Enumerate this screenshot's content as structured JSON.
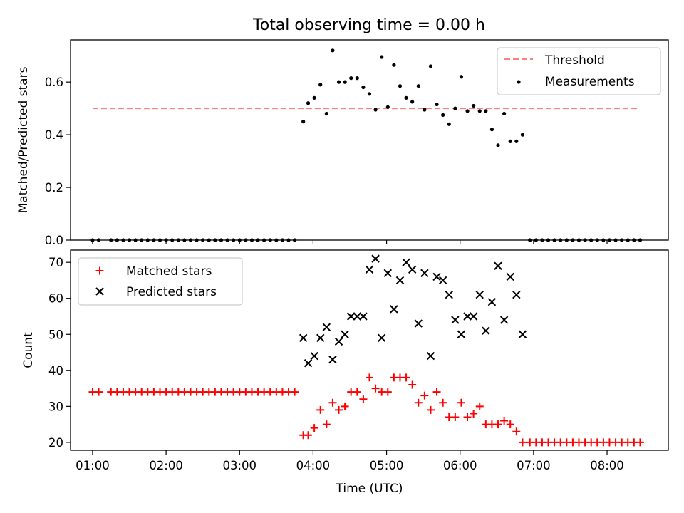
{
  "figure": {
    "title": "Total observing time = 0.00 h"
  },
  "chart_data": [
    {
      "type": "scatter",
      "ylabel": "Matched/Predicted stars",
      "xlabel": "",
      "xlim": [
        "00:42",
        "08:50"
      ],
      "ylim": [
        0,
        0.76
      ],
      "yticks": [
        0.0,
        0.2,
        0.4,
        0.6
      ],
      "ytick_labels": [
        "0.0",
        "0.2",
        "0.4",
        "0.6"
      ],
      "xticks": [
        "01:00",
        "02:00",
        "03:00",
        "04:00",
        "05:00",
        "06:00",
        "07:00",
        "08:00"
      ],
      "show_xtick_labels": false,
      "grid": false,
      "legend": {
        "position": "top-right",
        "entries": [
          {
            "label": "Threshold",
            "style": "dashed-line",
            "color": "#ff7f7f"
          },
          {
            "label": "Measurements",
            "style": "dot",
            "color": "#000000"
          }
        ]
      },
      "series": [
        {
          "name": "Threshold",
          "kind": "line",
          "dashed": true,
          "color": "#ff7f7f",
          "points": [
            [
              "01:00",
              0.5
            ],
            [
              "08:25",
              0.5
            ]
          ]
        },
        {
          "name": "Measurements",
          "kind": "scatter",
          "marker": "dot",
          "color": "#000000",
          "points": [
            [
              "01:00",
              0
            ],
            [
              "01:05",
              0
            ],
            [
              "01:15",
              0
            ],
            [
              "01:20",
              0
            ],
            [
              "01:25",
              0
            ],
            [
              "01:30",
              0
            ],
            [
              "01:35",
              0
            ],
            [
              "01:40",
              0
            ],
            [
              "01:45",
              0
            ],
            [
              "01:50",
              0
            ],
            [
              "01:55",
              0
            ],
            [
              "02:00",
              0
            ],
            [
              "02:05",
              0
            ],
            [
              "02:10",
              0
            ],
            [
              "02:15",
              0
            ],
            [
              "02:20",
              0
            ],
            [
              "02:25",
              0
            ],
            [
              "02:30",
              0
            ],
            [
              "02:35",
              0
            ],
            [
              "02:40",
              0
            ],
            [
              "02:45",
              0
            ],
            [
              "02:50",
              0
            ],
            [
              "02:55",
              0
            ],
            [
              "03:00",
              0
            ],
            [
              "03:05",
              0
            ],
            [
              "03:10",
              0
            ],
            [
              "03:15",
              0
            ],
            [
              "03:20",
              0
            ],
            [
              "03:25",
              0
            ],
            [
              "03:30",
              0
            ],
            [
              "03:35",
              0
            ],
            [
              "03:40",
              0
            ],
            [
              "03:45",
              0
            ],
            [
              "03:52",
              0.45
            ],
            [
              "03:56",
              0.52
            ],
            [
              "04:01",
              0.54
            ],
            [
              "04:06",
              0.59
            ],
            [
              "04:11",
              0.48
            ],
            [
              "04:16",
              0.72
            ],
            [
              "04:21",
              0.6
            ],
            [
              "04:26",
              0.6
            ],
            [
              "04:31",
              0.615
            ],
            [
              "04:36",
              0.615
            ],
            [
              "04:41",
              0.58
            ],
            [
              "04:46",
              0.555
            ],
            [
              "04:51",
              0.495
            ],
            [
              "04:56",
              0.695
            ],
            [
              "05:01",
              0.505
            ],
            [
              "05:06",
              0.665
            ],
            [
              "05:11",
              0.585
            ],
            [
              "05:16",
              0.54
            ],
            [
              "05:21",
              0.525
            ],
            [
              "05:26",
              0.585
            ],
            [
              "05:31",
              0.495
            ],
            [
              "05:36",
              0.66
            ],
            [
              "05:41",
              0.515
            ],
            [
              "05:46",
              0.475
            ],
            [
              "05:51",
              0.44
            ],
            [
              "05:56",
              0.5
            ],
            [
              "06:01",
              0.62
            ],
            [
              "06:06",
              0.49
            ],
            [
              "06:11",
              0.51
            ],
            [
              "06:16",
              0.49
            ],
            [
              "06:21",
              0.49
            ],
            [
              "06:26",
              0.42
            ],
            [
              "06:31",
              0.36
            ],
            [
              "06:36",
              0.48
            ],
            [
              "06:41",
              0.375
            ],
            [
              "06:46",
              0.375
            ],
            [
              "06:51",
              0.4
            ],
            [
              "06:57",
              0
            ],
            [
              "07:02",
              0
            ],
            [
              "07:07",
              0
            ],
            [
              "07:12",
              0
            ],
            [
              "07:17",
              0
            ],
            [
              "07:22",
              0
            ],
            [
              "07:27",
              0
            ],
            [
              "07:32",
              0
            ],
            [
              "07:37",
              0
            ],
            [
              "07:42",
              0
            ],
            [
              "07:47",
              0
            ],
            [
              "07:52",
              0
            ],
            [
              "07:57",
              0
            ],
            [
              "08:02",
              0
            ],
            [
              "08:07",
              0
            ],
            [
              "08:12",
              0
            ],
            [
              "08:17",
              0
            ],
            [
              "08:22",
              0
            ],
            [
              "08:27",
              0
            ]
          ]
        }
      ]
    },
    {
      "type": "scatter",
      "ylabel": "Count",
      "xlabel": "Time (UTC)",
      "xlim": [
        "00:42",
        "08:50"
      ],
      "ylim": [
        17.8,
        73.4
      ],
      "yticks": [
        20,
        30,
        40,
        50,
        60,
        70
      ],
      "ytick_labels": [
        "20",
        "30",
        "40",
        "50",
        "60",
        "70"
      ],
      "xticks": [
        "01:00",
        "02:00",
        "03:00",
        "04:00",
        "05:00",
        "06:00",
        "07:00",
        "08:00"
      ],
      "show_xtick_labels": true,
      "grid": false,
      "legend": {
        "position": "top-left",
        "entries": [
          {
            "label": "Matched stars",
            "style": "plus",
            "color": "#ff0000"
          },
          {
            "label": "Predicted stars",
            "style": "cross",
            "color": "#000000"
          }
        ]
      },
      "series": [
        {
          "name": "Matched stars",
          "kind": "scatter",
          "marker": "plus",
          "color": "#ff0000",
          "points": [
            [
              "01:00",
              34
            ],
            [
              "01:05",
              34
            ],
            [
              "01:15",
              34
            ],
            [
              "01:20",
              34
            ],
            [
              "01:25",
              34
            ],
            [
              "01:30",
              34
            ],
            [
              "01:35",
              34
            ],
            [
              "01:40",
              34
            ],
            [
              "01:45",
              34
            ],
            [
              "01:50",
              34
            ],
            [
              "01:55",
              34
            ],
            [
              "02:00",
              34
            ],
            [
              "02:05",
              34
            ],
            [
              "02:10",
              34
            ],
            [
              "02:15",
              34
            ],
            [
              "02:20",
              34
            ],
            [
              "02:25",
              34
            ],
            [
              "02:30",
              34
            ],
            [
              "02:35",
              34
            ],
            [
              "02:40",
              34
            ],
            [
              "02:45",
              34
            ],
            [
              "02:50",
              34
            ],
            [
              "02:55",
              34
            ],
            [
              "03:00",
              34
            ],
            [
              "03:05",
              34
            ],
            [
              "03:10",
              34
            ],
            [
              "03:15",
              34
            ],
            [
              "03:20",
              34
            ],
            [
              "03:25",
              34
            ],
            [
              "03:30",
              34
            ],
            [
              "03:35",
              34
            ],
            [
              "03:40",
              34
            ],
            [
              "03:45",
              34
            ],
            [
              "03:52",
              22
            ],
            [
              "03:56",
              22
            ],
            [
              "04:01",
              24
            ],
            [
              "04:06",
              29
            ],
            [
              "04:11",
              25
            ],
            [
              "04:16",
              31
            ],
            [
              "04:21",
              29
            ],
            [
              "04:26",
              30
            ],
            [
              "04:31",
              34
            ],
            [
              "04:36",
              34
            ],
            [
              "04:41",
              32
            ],
            [
              "04:46",
              38
            ],
            [
              "04:51",
              35
            ],
            [
              "04:56",
              34
            ],
            [
              "05:01",
              34
            ],
            [
              "05:06",
              38
            ],
            [
              "05:11",
              38
            ],
            [
              "05:16",
              38
            ],
            [
              "05:21",
              36
            ],
            [
              "05:26",
              31
            ],
            [
              "05:31",
              33
            ],
            [
              "05:36",
              29
            ],
            [
              "05:41",
              34
            ],
            [
              "05:46",
              31
            ],
            [
              "05:51",
              27
            ],
            [
              "05:56",
              27
            ],
            [
              "06:01",
              31
            ],
            [
              "06:06",
              27
            ],
            [
              "06:11",
              28
            ],
            [
              "06:16",
              30
            ],
            [
              "06:21",
              25
            ],
            [
              "06:26",
              25
            ],
            [
              "06:31",
              25
            ],
            [
              "06:36",
              26
            ],
            [
              "06:41",
              25
            ],
            [
              "06:46",
              23
            ],
            [
              "06:51",
              20
            ],
            [
              "06:57",
              20
            ],
            [
              "07:02",
              20
            ],
            [
              "07:07",
              20
            ],
            [
              "07:12",
              20
            ],
            [
              "07:17",
              20
            ],
            [
              "07:22",
              20
            ],
            [
              "07:27",
              20
            ],
            [
              "07:32",
              20
            ],
            [
              "07:37",
              20
            ],
            [
              "07:42",
              20
            ],
            [
              "07:47",
              20
            ],
            [
              "07:52",
              20
            ],
            [
              "07:57",
              20
            ],
            [
              "08:02",
              20
            ],
            [
              "08:07",
              20
            ],
            [
              "08:12",
              20
            ],
            [
              "08:17",
              20
            ],
            [
              "08:22",
              20
            ],
            [
              "08:27",
              20
            ]
          ]
        },
        {
          "name": "Predicted stars",
          "kind": "scatter",
          "marker": "cross",
          "color": "#000000",
          "points": [
            [
              "03:52",
              49
            ],
            [
              "03:56",
              42
            ],
            [
              "04:01",
              44
            ],
            [
              "04:06",
              49
            ],
            [
              "04:11",
              52
            ],
            [
              "04:16",
              43
            ],
            [
              "04:21",
              48
            ],
            [
              "04:26",
              50
            ],
            [
              "04:31",
              55
            ],
            [
              "04:36",
              55
            ],
            [
              "04:41",
              55
            ],
            [
              "04:46",
              68
            ],
            [
              "04:51",
              71
            ],
            [
              "04:56",
              49
            ],
            [
              "05:01",
              67
            ],
            [
              "05:06",
              57
            ],
            [
              "05:11",
              65
            ],
            [
              "05:16",
              70
            ],
            [
              "05:21",
              68
            ],
            [
              "05:26",
              53
            ],
            [
              "05:31",
              67
            ],
            [
              "05:36",
              44
            ],
            [
              "05:41",
              66
            ],
            [
              "05:46",
              65
            ],
            [
              "05:51",
              61
            ],
            [
              "05:56",
              54
            ],
            [
              "06:01",
              50
            ],
            [
              "06:06",
              55
            ],
            [
              "06:11",
              55
            ],
            [
              "06:16",
              61
            ],
            [
              "06:21",
              51
            ],
            [
              "06:26",
              59
            ],
            [
              "06:31",
              69
            ],
            [
              "06:36",
              54
            ],
            [
              "06:41",
              66
            ],
            [
              "06:46",
              61
            ],
            [
              "06:51",
              50
            ]
          ]
        }
      ]
    }
  ]
}
